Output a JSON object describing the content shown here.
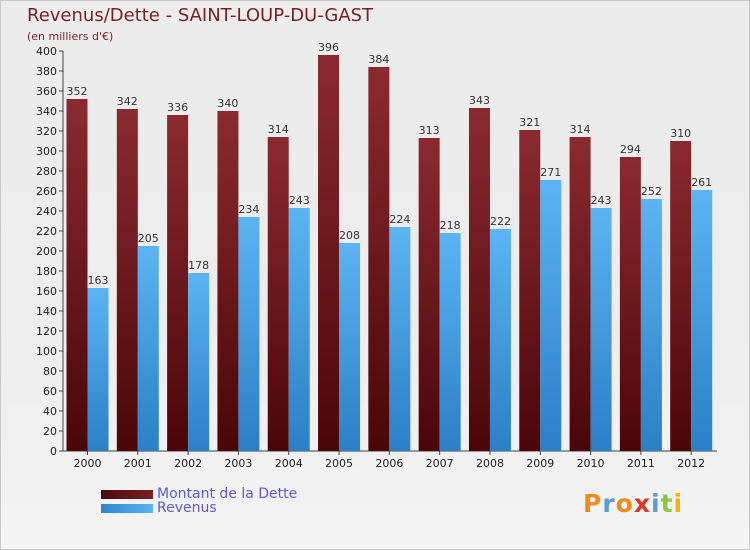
{
  "header": {
    "title": "Revenus/Dette - SAINT-LOUP-DU-GAST",
    "subtitle": "(en milliers d'€)"
  },
  "chart_data": {
    "type": "bar",
    "title": "Revenus/Dette - SAINT-LOUP-DU-GAST",
    "subtitle": "(en milliers d'€)",
    "xlabel": "",
    "ylabel": "",
    "ylim": [
      0,
      400
    ],
    "ytick_step": 20,
    "grid": false,
    "legend_position": "bottom-left",
    "categories": [
      "2000",
      "2001",
      "2002",
      "2003",
      "2004",
      "2005",
      "2006",
      "2007",
      "2008",
      "2009",
      "2010",
      "2011",
      "2012"
    ],
    "series": [
      {
        "name": "Montant de la Dette",
        "color": "#7a1f24",
        "values": [
          352,
          342,
          336,
          340,
          314,
          396,
          384,
          313,
          343,
          321,
          314,
          294,
          310
        ]
      },
      {
        "name": "Revenus",
        "color": "#4aa3e6",
        "values": [
          163,
          205,
          178,
          234,
          243,
          208,
          224,
          218,
          222,
          271,
          243,
          252,
          261
        ]
      }
    ]
  },
  "logo": {
    "letters": [
      {
        "ch": "P",
        "color": "#f08a1c"
      },
      {
        "ch": "r",
        "color": "#5a9ad8"
      },
      {
        "ch": "o",
        "color": "#f08a1c"
      },
      {
        "ch": "x",
        "color": "#d8392b"
      },
      {
        "ch": "i",
        "color": "#5a9ad8"
      },
      {
        "ch": "t",
        "color": "#8cc63f"
      },
      {
        "ch": "i",
        "color": "#f2b21b"
      }
    ]
  }
}
